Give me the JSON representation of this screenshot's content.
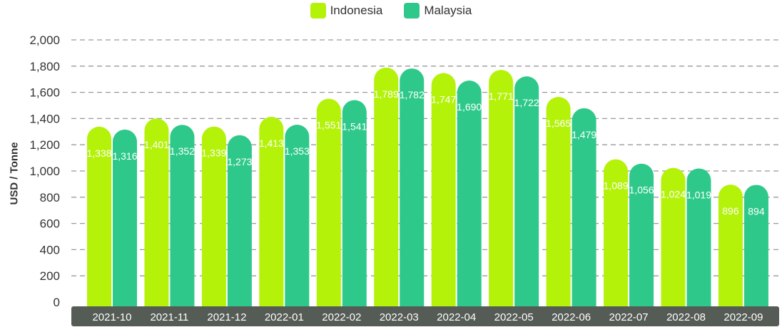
{
  "chart_data": {
    "type": "bar",
    "categories": [
      "2021-10",
      "2021-11",
      "2021-12",
      "2022-01",
      "2022-02",
      "2022-03",
      "2022-04",
      "2022-05",
      "2022-06",
      "2022-07",
      "2022-08",
      "2022-09"
    ],
    "series": [
      {
        "name": "Indonesia",
        "color": "#b4f20a",
        "values": [
          1338,
          1401,
          1339,
          1413,
          1551,
          1789,
          1747,
          1771,
          1565,
          1089,
          1024,
          896
        ]
      },
      {
        "name": "Malaysia",
        "color": "#2ec98a",
        "values": [
          1316,
          1352,
          1273,
          1353,
          1541,
          1782,
          1690,
          1722,
          1479,
          1056,
          1019,
          894
        ]
      }
    ],
    "value_labels": {
      "Indonesia": [
        "1,338",
        "1,401",
        "1,339",
        "1,413",
        "1,551",
        "1,789",
        "1,747",
        "1,771",
        "1,565",
        "1,089",
        "1,024",
        "896"
      ],
      "Malaysia": [
        "1,316",
        "1,352",
        "1,273",
        "1,353",
        "1,541",
        "1,782",
        "1,690",
        "1,722",
        "1,479",
        "1,056",
        "1,019",
        "894"
      ]
    },
    "ylabel": "USD / Tonne",
    "ylim": [
      0,
      2000
    ],
    "yticks": [
      0,
      200,
      400,
      600,
      800,
      1000,
      1200,
      1400,
      1600,
      1800,
      2000
    ],
    "ytick_labels": [
      "0",
      "200",
      "400",
      "600",
      "800",
      "1,000",
      "1,200",
      "1,400",
      "1,600",
      "1,800",
      "2,000"
    ],
    "grid": true,
    "legend_position": "top-center",
    "axis_band_color": "#555b55"
  }
}
